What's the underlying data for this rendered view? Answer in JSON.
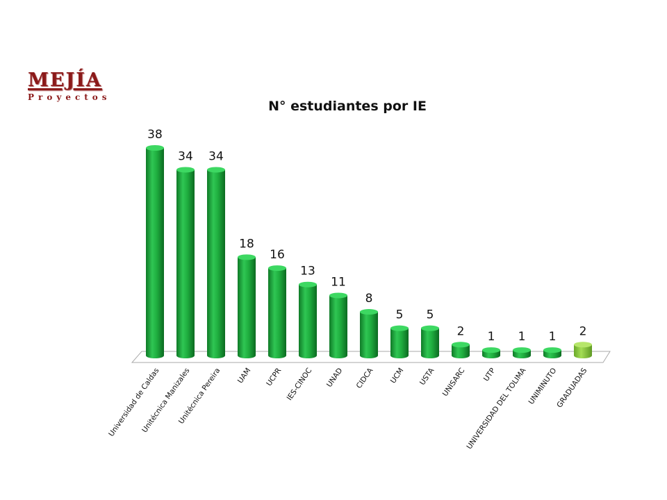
{
  "logo": {
    "name": "MEJÍA",
    "subtitle": "Proyectos"
  },
  "chart_data": {
    "type": "bar",
    "title": "N° estudiantes por IE",
    "categories": [
      "Universidad de Caldas",
      "Unitécnica Manizales",
      "Unitécnica Pereira",
      "UAM",
      "UCPR",
      "IES-CINOC",
      "UNAD",
      "CIDCA",
      "UCM",
      "USTA",
      "UNISARC",
      "UTP",
      "UNIVERSIDAD DEL TOLIMA",
      "UNIMINUTO",
      "GRADUADAS"
    ],
    "values": [
      38,
      34,
      34,
      18,
      16,
      13,
      11,
      8,
      5,
      5,
      2,
      1,
      1,
      1,
      2
    ],
    "ylim": [
      0,
      40
    ],
    "grid": false,
    "colors": {
      "bar": "#1faa3e",
      "highlight": "#8cc63f",
      "floor": "#ffffff",
      "floor_edge": "#aaaaaa"
    }
  }
}
